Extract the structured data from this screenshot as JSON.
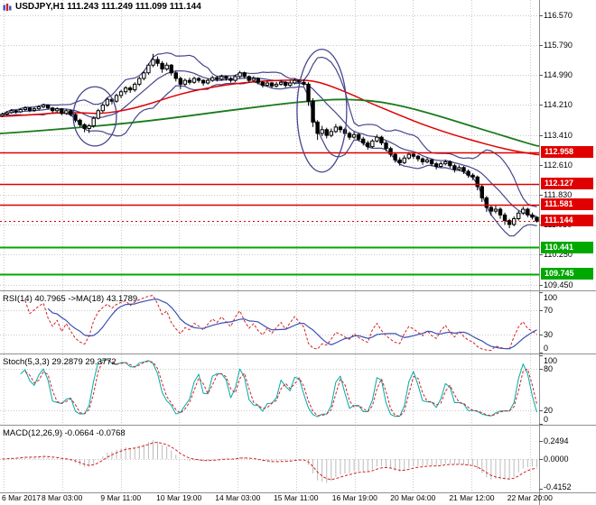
{
  "window": {
    "title": "USDJPY,H1 111.243 111.249 111.099 111.144"
  },
  "panels": {
    "rsi_label": "RSI(14) 40.7965 ->MA(18) 43.1789",
    "stoch_label": "Stoch(5,3,3) 29.2879 29.3772",
    "macd_label": "MACD(12,26,9) -0.0664 -0.0768"
  },
  "icons": {
    "title_icon": "candlestick-chart-icon"
  },
  "colors": {
    "grid": "#c9c9c9",
    "candle": "#000000",
    "bull": "#ffffff",
    "bear": "#000000",
    "bollinger": "#46468c",
    "ma_red": "#e00000",
    "ma_green": "#1a7a1a",
    "res_line": "#e00000",
    "sup_line": "#00a800",
    "badge_red": "#e00000",
    "badge_green": "#00a800",
    "rsi_line": "#d22222",
    "rsi_ma": "#3a50b4",
    "stoch_main": "#00aaaa",
    "stoch_signal": "#d22222",
    "macd_hist": "#bbbbbb",
    "macd_signal": "#d22222",
    "separator": "#909090",
    "text": "#000000"
  },
  "chart_data": [
    {
      "type": "candlestick",
      "symbol": "USDJPY",
      "timeframe": "H1",
      "ohlc_display": {
        "open": "111.243",
        "high": "111.249",
        "low": "111.099",
        "close": "111.144"
      },
      "ylim": [
        109.31,
        116.97
      ],
      "yticks": [
        "116.570",
        "115.790",
        "114.990",
        "114.210",
        "113.410",
        "112.610",
        "111.830",
        "111.050",
        "110.250",
        "109.450"
      ],
      "x_labels": [
        {
          "text": "6 Mar 2017",
          "f": 0.007
        },
        {
          "text": "8 Mar 03:00",
          "f": 0.115
        },
        {
          "text": "9 Mar 11:00",
          "f": 0.224
        },
        {
          "text": "10 Mar 19:00",
          "f": 0.332
        },
        {
          "text": "14 Mar 03:00",
          "f": 0.441
        },
        {
          "text": "15 Mar 11:00",
          "f": 0.549
        },
        {
          "text": "16 Mar 19:00",
          "f": 0.658
        },
        {
          "text": "20 Mar 04:00",
          "f": 0.766
        },
        {
          "text": "21 Mar 12:00",
          "f": 0.875
        },
        {
          "text": "22 Mar 20:00",
          "f": 0.983
        }
      ],
      "candles": [
        [
          113.92,
          114.0,
          113.88,
          113.96
        ],
        [
          113.96,
          114.04,
          113.93,
          114.0
        ],
        [
          114.0,
          114.09,
          113.97,
          114.05
        ],
        [
          114.05,
          114.08,
          113.97,
          114.02
        ],
        [
          114.02,
          114.12,
          113.99,
          114.08
        ],
        [
          114.08,
          114.16,
          114.04,
          114.12
        ],
        [
          114.12,
          114.14,
          114.01,
          114.06
        ],
        [
          114.06,
          114.14,
          114.02,
          114.1
        ],
        [
          114.1,
          114.19,
          114.06,
          114.15
        ],
        [
          114.15,
          114.24,
          114.11,
          114.2
        ],
        [
          114.2,
          114.22,
          114.08,
          114.12
        ],
        [
          114.12,
          114.15,
          114.0,
          114.05
        ],
        [
          114.05,
          114.14,
          114.01,
          114.1
        ],
        [
          114.1,
          114.12,
          113.93,
          113.98
        ],
        [
          113.98,
          114.09,
          113.94,
          114.05
        ],
        [
          114.05,
          114.07,
          113.9,
          113.95
        ],
        [
          113.95,
          113.98,
          113.74,
          113.8
        ],
        [
          113.8,
          113.84,
          113.62,
          113.68
        ],
        [
          113.68,
          113.72,
          113.48,
          113.58
        ],
        [
          113.58,
          113.7,
          113.46,
          113.65
        ],
        [
          113.65,
          113.9,
          113.6,
          113.85
        ],
        [
          113.85,
          114.1,
          113.82,
          114.05
        ],
        [
          114.05,
          114.25,
          114.0,
          114.2
        ],
        [
          114.2,
          114.4,
          114.15,
          114.35
        ],
        [
          114.35,
          114.4,
          114.22,
          114.3
        ],
        [
          114.3,
          114.5,
          114.26,
          114.45
        ],
        [
          114.45,
          114.6,
          114.38,
          114.55
        ],
        [
          114.55,
          114.7,
          114.48,
          114.65
        ],
        [
          114.65,
          114.7,
          114.52,
          114.6
        ],
        [
          114.6,
          114.8,
          114.55,
          114.75
        ],
        [
          114.75,
          114.95,
          114.7,
          114.9
        ],
        [
          114.9,
          115.1,
          114.85,
          115.05
        ],
        [
          115.05,
          115.3,
          115.0,
          115.25
        ],
        [
          115.25,
          115.55,
          115.2,
          115.4
        ],
        [
          115.4,
          115.48,
          115.22,
          115.3
        ],
        [
          115.3,
          115.36,
          115.05,
          115.15
        ],
        [
          115.15,
          115.32,
          115.1,
          115.25
        ],
        [
          115.25,
          115.28,
          114.98,
          115.05
        ],
        [
          115.05,
          115.1,
          114.82,
          114.9
        ],
        [
          114.9,
          114.95,
          114.62,
          114.75
        ],
        [
          114.75,
          114.9,
          114.7,
          114.85
        ],
        [
          114.85,
          114.92,
          114.74,
          114.8
        ],
        [
          114.8,
          114.95,
          114.76,
          114.9
        ],
        [
          114.9,
          114.94,
          114.79,
          114.85
        ],
        [
          114.85,
          114.88,
          114.71,
          114.78
        ],
        [
          114.78,
          114.9,
          114.74,
          114.85
        ],
        [
          114.85,
          114.97,
          114.81,
          114.92
        ],
        [
          114.92,
          114.96,
          114.82,
          114.88
        ],
        [
          114.88,
          115.0,
          114.84,
          114.95
        ],
        [
          114.95,
          114.98,
          114.84,
          114.9
        ],
        [
          114.9,
          114.94,
          114.79,
          114.85
        ],
        [
          114.85,
          115.0,
          114.81,
          114.95
        ],
        [
          114.95,
          115.1,
          114.91,
          115.05
        ],
        [
          115.05,
          115.08,
          114.89,
          114.95
        ],
        [
          114.95,
          114.98,
          114.79,
          114.85
        ],
        [
          114.85,
          114.96,
          114.81,
          114.9
        ],
        [
          114.9,
          114.93,
          114.74,
          114.8
        ],
        [
          114.8,
          114.84,
          114.66,
          114.72
        ],
        [
          114.72,
          114.84,
          114.68,
          114.78
        ],
        [
          114.78,
          114.81,
          114.64,
          114.7
        ],
        [
          114.7,
          114.81,
          114.66,
          114.75
        ],
        [
          114.75,
          114.86,
          114.71,
          114.8
        ],
        [
          114.8,
          114.83,
          114.66,
          114.72
        ],
        [
          114.72,
          114.84,
          114.68,
          114.78
        ],
        [
          114.78,
          114.91,
          114.74,
          114.85
        ],
        [
          114.85,
          114.88,
          114.74,
          114.8
        ],
        [
          114.8,
          114.88,
          114.7,
          114.75
        ],
        [
          114.75,
          114.8,
          114.18,
          114.3
        ],
        [
          114.3,
          114.38,
          113.62,
          113.75
        ],
        [
          113.75,
          113.8,
          113.28,
          113.45
        ],
        [
          113.45,
          113.65,
          113.38,
          113.55
        ],
        [
          113.55,
          113.6,
          113.32,
          113.4
        ],
        [
          113.4,
          113.58,
          113.35,
          113.5
        ],
        [
          113.5,
          113.7,
          113.46,
          113.62
        ],
        [
          113.62,
          113.66,
          113.47,
          113.55
        ],
        [
          113.55,
          113.6,
          113.38,
          113.45
        ],
        [
          113.45,
          113.5,
          113.28,
          113.35
        ],
        [
          113.35,
          113.5,
          113.31,
          113.42
        ],
        [
          113.42,
          113.46,
          113.24,
          113.3
        ],
        [
          113.3,
          113.36,
          113.13,
          113.2
        ],
        [
          113.2,
          113.26,
          113.02,
          113.1
        ],
        [
          113.1,
          113.3,
          113.06,
          113.25
        ],
        [
          113.25,
          113.42,
          113.21,
          113.35
        ],
        [
          113.35,
          113.39,
          113.14,
          113.2
        ],
        [
          113.2,
          113.25,
          112.98,
          113.05
        ],
        [
          113.05,
          113.1,
          112.83,
          112.9
        ],
        [
          112.9,
          112.95,
          112.68,
          112.75
        ],
        [
          112.75,
          112.82,
          112.6,
          112.68
        ],
        [
          112.68,
          112.87,
          112.64,
          112.8
        ],
        [
          112.8,
          112.96,
          112.76,
          112.9
        ],
        [
          112.9,
          112.94,
          112.78,
          112.85
        ],
        [
          112.85,
          112.89,
          112.71,
          112.78
        ],
        [
          112.78,
          112.82,
          112.62,
          112.7
        ],
        [
          112.7,
          112.81,
          112.66,
          112.75
        ],
        [
          112.75,
          112.79,
          112.58,
          112.65
        ],
        [
          112.65,
          112.7,
          112.5,
          112.58
        ],
        [
          112.58,
          112.71,
          112.54,
          112.65
        ],
        [
          112.65,
          112.76,
          112.61,
          112.7
        ],
        [
          112.7,
          112.74,
          112.54,
          112.6
        ],
        [
          112.6,
          112.65,
          112.42,
          112.5
        ],
        [
          112.5,
          112.61,
          112.46,
          112.55
        ],
        [
          112.55,
          112.59,
          112.38,
          112.45
        ],
        [
          112.45,
          112.5,
          112.28,
          112.35
        ],
        [
          112.35,
          112.4,
          112.22,
          112.3
        ],
        [
          112.3,
          112.34,
          111.95,
          112.05
        ],
        [
          112.05,
          112.1,
          111.64,
          111.75
        ],
        [
          111.75,
          111.8,
          111.38,
          111.5
        ],
        [
          111.5,
          111.56,
          111.28,
          111.4
        ],
        [
          111.4,
          111.56,
          111.34,
          111.45
        ],
        [
          111.45,
          111.5,
          111.2,
          111.3
        ],
        [
          111.3,
          111.36,
          111.04,
          111.15
        ],
        [
          111.15,
          111.2,
          110.95,
          111.05
        ],
        [
          111.05,
          111.26,
          111.0,
          111.2
        ],
        [
          111.2,
          111.41,
          111.15,
          111.35
        ],
        [
          111.35,
          111.52,
          111.3,
          111.45
        ],
        [
          111.45,
          111.49,
          111.24,
          111.3
        ],
        [
          111.3,
          111.36,
          111.18,
          111.24
        ],
        [
          111.24,
          111.25,
          111.1,
          111.14
        ]
      ],
      "overlays": {
        "red_ma": [
          [
            0,
            113.9
          ],
          [
            6,
            113.94
          ],
          [
            12,
            113.99
          ],
          [
            17,
            114.0
          ],
          [
            21,
            113.97
          ],
          [
            25,
            114.02
          ],
          [
            29,
            114.12
          ],
          [
            33,
            114.26
          ],
          [
            37,
            114.42
          ],
          [
            41,
            114.55
          ],
          [
            45,
            114.65
          ],
          [
            49,
            114.73
          ],
          [
            53,
            114.79
          ],
          [
            57,
            114.83
          ],
          [
            61,
            114.85
          ],
          [
            65,
            114.86
          ],
          [
            68,
            114.84
          ],
          [
            71,
            114.74
          ],
          [
            74,
            114.6
          ],
          [
            77,
            114.45
          ],
          [
            80,
            114.28
          ],
          [
            84,
            114.08
          ],
          [
            88,
            113.88
          ],
          [
            92,
            113.69
          ],
          [
            96,
            113.52
          ],
          [
            100,
            113.37
          ],
          [
            104,
            113.23
          ],
          [
            108,
            113.1
          ],
          [
            112,
            112.99
          ],
          [
            117,
            112.89
          ]
        ],
        "green_ma": [
          [
            0,
            113.45
          ],
          [
            8,
            113.52
          ],
          [
            16,
            113.6
          ],
          [
            24,
            113.68
          ],
          [
            32,
            113.78
          ],
          [
            40,
            113.9
          ],
          [
            48,
            114.03
          ],
          [
            56,
            114.15
          ],
          [
            62,
            114.24
          ],
          [
            68,
            114.31
          ],
          [
            73,
            114.35
          ],
          [
            78,
            114.34
          ],
          [
            83,
            114.28
          ],
          [
            88,
            114.16
          ],
          [
            93,
            114.0
          ],
          [
            98,
            113.82
          ],
          [
            103,
            113.63
          ],
          [
            108,
            113.45
          ],
          [
            112,
            113.3
          ],
          [
            117,
            113.12
          ]
        ],
        "bollinger": {
          "period": 10,
          "mult": 2
        }
      },
      "hlines": [
        {
          "price": 112.958,
          "label": "112.958",
          "color": "#e00000",
          "width": 1.4
        },
        {
          "price": 112.127,
          "label": "112.127",
          "color": "#e00000",
          "width": 1.4
        },
        {
          "price": 111.581,
          "label": "111.581",
          "color": "#e00000",
          "width": 1.4
        },
        {
          "price": 110.441,
          "label": "110.441",
          "color": "#00a800",
          "width": 2
        },
        {
          "price": 109.745,
          "label": "109.745",
          "color": "#00a800",
          "width": 2
        }
      ],
      "current_price": {
        "price": 111.144,
        "label": "111.144",
        "color": "#e00000"
      },
      "ellipses": [
        {
          "f": 0.176,
          "price": 113.9,
          "rf": 0.04,
          "rprice": 0.78
        },
        {
          "f": 0.597,
          "price": 114.05,
          "rf": 0.046,
          "rprice": 1.62
        }
      ]
    },
    {
      "type": "line",
      "name": "RSI",
      "display_params": "RSI(14) with MA(18)",
      "value": 40.7965,
      "ma_value": 43.1789,
      "ylim": [
        0,
        100
      ],
      "levels": [
        70,
        30
      ],
      "yticks": [
        {
          "v": 100,
          "t": "100"
        },
        {
          "v": 70,
          "t": "70"
        },
        {
          "v": 30,
          "t": "30"
        },
        {
          "v": 0,
          "t": "0"
        }
      ],
      "render": {
        "period": 5,
        "signal": 6
      }
    },
    {
      "type": "line",
      "name": "Stochastic",
      "display_params": "Stoch(5,3,3)",
      "value": 29.2879,
      "signal_value": 29.3772,
      "ylim": [
        0,
        100
      ],
      "levels": [
        80,
        20
      ],
      "yticks": [
        {
          "v": 100,
          "t": "100"
        },
        {
          "v": 80,
          "t": "80"
        },
        {
          "v": 20,
          "t": "20"
        },
        {
          "v": 0,
          "t": "0"
        }
      ],
      "render": {
        "k": 4,
        "slowing": 2,
        "d": 2
      }
    },
    {
      "type": "histogram+line",
      "name": "MACD",
      "display_params": "MACD(12,26,9)",
      "value": -0.0664,
      "signal_value": -0.0768,
      "ylim": [
        -0.449,
        0.449
      ],
      "levels": [
        0
      ],
      "yticks": [
        {
          "v": 0.2494,
          "t": "0.2494"
        },
        {
          "v": 0,
          "t": "0.0000"
        },
        {
          "v": -0.4152,
          "t": "-0.4152"
        }
      ],
      "render": {
        "fast": 5,
        "slow": 10,
        "signal": 4
      }
    }
  ]
}
